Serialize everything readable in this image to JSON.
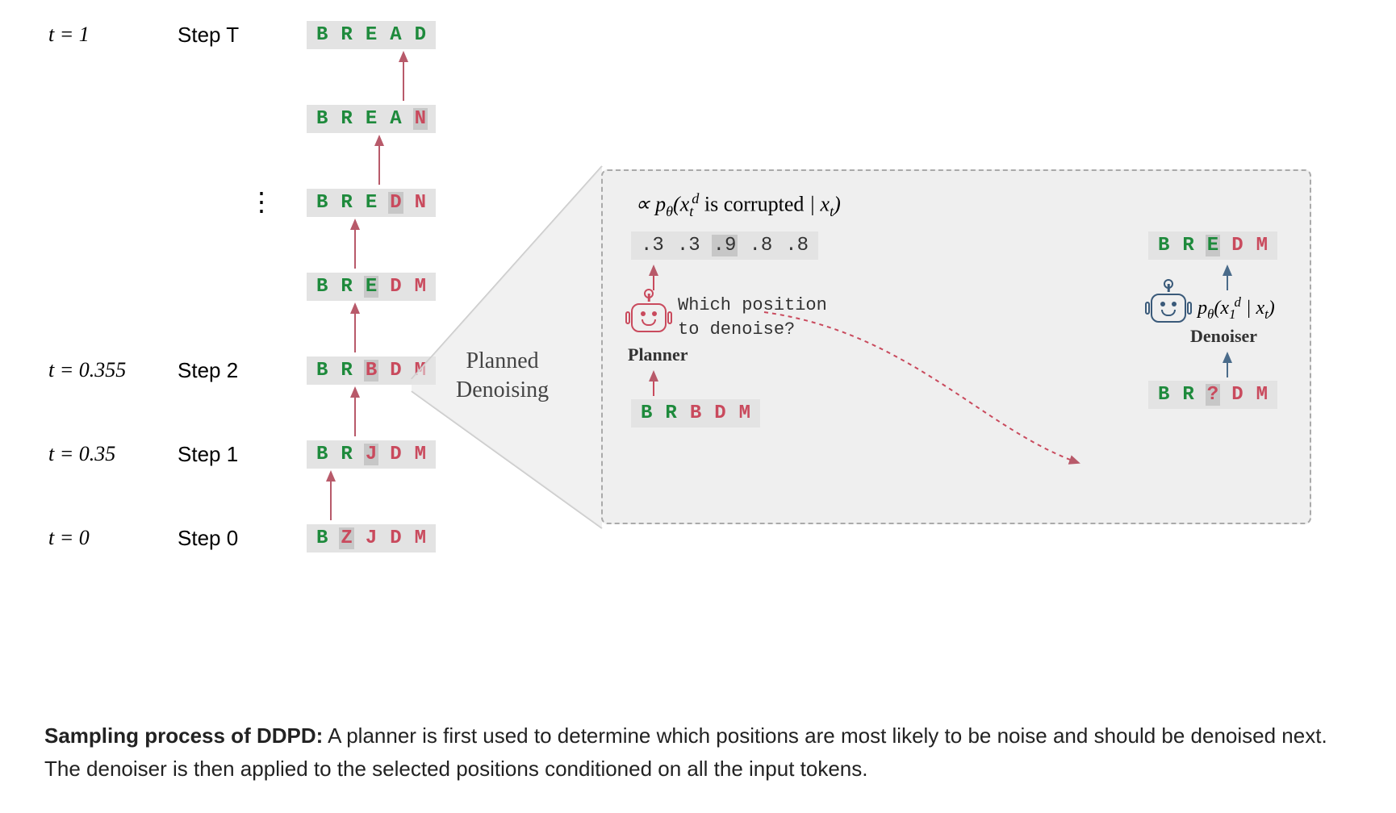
{
  "colors": {
    "correct": "#1e8a3c",
    "wrong": "#c94a5d",
    "box_bg": "#e3e3e3",
    "highlight_bg": "#c7c7c7",
    "arrow_red": "#b85a6a",
    "arrow_blue": "#4a6b8a",
    "detail_bg": "#efefef",
    "text_dark": "#222222",
    "planner_color": "#c94a5d",
    "denoiser_color": "#3a5a7a"
  },
  "typography": {
    "mono_family": "Courier New",
    "serif_family": "Georgia",
    "seq_fontsize": 24,
    "label_fontsize": 26,
    "caption_fontsize": 26
  },
  "left_sequence": {
    "rows": [
      {
        "t": "t = 1",
        "step": "Step T",
        "letters": [
          "B",
          "R",
          "E",
          "A",
          "D"
        ],
        "correct": [
          1,
          1,
          1,
          1,
          1
        ],
        "hl_idx": null
      },
      {
        "t": "",
        "step": "",
        "letters": [
          "B",
          "R",
          "E",
          "A",
          "N"
        ],
        "correct": [
          1,
          1,
          1,
          1,
          0
        ],
        "hl_idx": 4
      },
      {
        "t": "",
        "step": "⋮",
        "letters": [
          "B",
          "R",
          "E",
          "D",
          "N"
        ],
        "correct": [
          1,
          1,
          1,
          0,
          0
        ],
        "hl_idx": 3,
        "vdots": true
      },
      {
        "t": "",
        "step": "",
        "letters": [
          "B",
          "R",
          "E",
          "D",
          "M"
        ],
        "correct": [
          1,
          1,
          1,
          0,
          0
        ],
        "hl_idx": 2
      },
      {
        "t": "t = 0.355",
        "step": "Step 2",
        "letters": [
          "B",
          "R",
          "B",
          "D",
          "M"
        ],
        "correct": [
          1,
          1,
          0,
          0,
          0
        ],
        "hl_idx": 2
      },
      {
        "t": "t = 0.35",
        "step": "Step 1",
        "letters": [
          "B",
          "R",
          "J",
          "D",
          "M"
        ],
        "correct": [
          1,
          1,
          0,
          0,
          0
        ],
        "hl_idx": 2
      },
      {
        "t": "t = 0",
        "step": "Step 0",
        "letters": [
          "B",
          "Z",
          "J",
          "D",
          "M"
        ],
        "correct": [
          1,
          0,
          0,
          0,
          0
        ],
        "hl_idx": 1
      }
    ],
    "row_spacing": 104,
    "arrow_color": "#b85a6a"
  },
  "planned_denoising_label": "Planned\nDenoising",
  "detail_panel": {
    "formula_top": "∝ p_θ(x_t^d is corrupted | x_t)",
    "probs": [
      ".3",
      ".3",
      ".9",
      ".8",
      ".8"
    ],
    "probs_hl_idx": 2,
    "planner": {
      "label": "Planner",
      "question": "Which position\nto denoise?",
      "input": [
        "B",
        "R",
        "B",
        "D",
        "M"
      ],
      "input_correct": [
        1,
        1,
        0,
        0,
        0
      ],
      "color": "#c94a5d"
    },
    "denoiser": {
      "label": "Denoiser",
      "formula": "p_θ(x_1^d | x_t)",
      "output": [
        "B",
        "R",
        "E",
        "D",
        "M"
      ],
      "output_correct": [
        1,
        1,
        1,
        0,
        0
      ],
      "output_hl_idx": 2,
      "input": [
        "B",
        "R",
        "?",
        "D",
        "M"
      ],
      "input_correct": [
        1,
        1,
        0,
        0,
        0
      ],
      "input_hl_idx": 2,
      "color": "#3a5a7a"
    }
  },
  "caption": {
    "bold": "Sampling process of DDPD:",
    "rest": " A planner is first used to determine which positions are most likely to be noise and should be denoised next. The denoiser is then applied to the selected positions conditioned on all the input tokens."
  }
}
